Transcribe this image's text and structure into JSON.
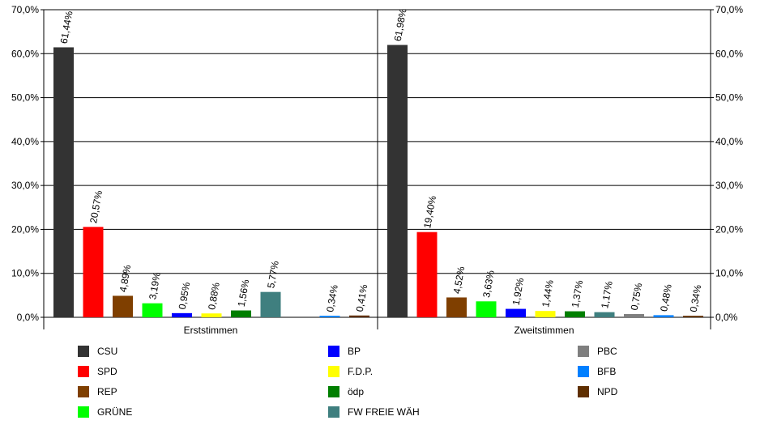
{
  "chart_data": {
    "type": "bar",
    "yaxis": {
      "min": 0,
      "max": 70,
      "step": 10,
      "tick_labels": [
        "0,0%",
        "10,0%",
        "20,0%",
        "30,0%",
        "40,0%",
        "50,0%",
        "60,0%",
        "70,0%"
      ],
      "gridlines": true,
      "secondary_axis_right": true
    },
    "groups": [
      {
        "name": "Erststimmen",
        "bars": [
          {
            "party": "CSU",
            "value": 61.44,
            "label": "61,44%"
          },
          {
            "party": "SPD",
            "value": 20.57,
            "label": "20,57%"
          },
          {
            "party": "REP",
            "value": 4.89,
            "label": "4,89%"
          },
          {
            "party": "GRÜNE",
            "value": 3.19,
            "label": "3,19%"
          },
          {
            "party": "BP",
            "value": 0.95,
            "label": "0,95%"
          },
          {
            "party": "F.D.P.",
            "value": 0.88,
            "label": "0,88%"
          },
          {
            "party": "ödp",
            "value": 1.56,
            "label": "1,56%"
          },
          {
            "party": "FW FREIE WÄH",
            "value": 5.77,
            "label": "5,77%"
          },
          {
            "party": "PBC",
            "value": null,
            "label": ""
          },
          {
            "party": "BFB",
            "value": 0.34,
            "label": "0,34%"
          },
          {
            "party": "NPD",
            "value": 0.41,
            "label": "0,41%"
          }
        ]
      },
      {
        "name": "Zweitstimmen",
        "bars": [
          {
            "party": "CSU",
            "value": 61.98,
            "label": "61,98%"
          },
          {
            "party": "SPD",
            "value": 19.4,
            "label": "19,40%"
          },
          {
            "party": "REP",
            "value": 4.52,
            "label": "4,52%"
          },
          {
            "party": "GRÜNE",
            "value": 3.63,
            "label": "3,63%"
          },
          {
            "party": "BP",
            "value": 1.92,
            "label": "1,92%"
          },
          {
            "party": "F.D.P.",
            "value": 1.44,
            "label": "1,44%"
          },
          {
            "party": "ödp",
            "value": 1.37,
            "label": "1,37%"
          },
          {
            "party": "FW FREIE WÄH",
            "value": 1.17,
            "label": "1,17%"
          },
          {
            "party": "PBC",
            "value": 0.75,
            "label": "0,75%"
          },
          {
            "party": "BFB",
            "value": 0.48,
            "label": "0,48%"
          },
          {
            "party": "NPD",
            "value": 0.34,
            "label": "0,34%"
          }
        ]
      }
    ],
    "legend": {
      "placement": "bottom",
      "columns": [
        [
          {
            "party": "CSU",
            "label": "CSU"
          },
          {
            "party": "SPD",
            "label": "SPD"
          },
          {
            "party": "REP",
            "label": "REP"
          },
          {
            "party": "GRÜNE",
            "label": "GRÜNE"
          }
        ],
        [
          {
            "party": "BP",
            "label": "BP"
          },
          {
            "party": "F.D.P.",
            "label": "F.D.P."
          },
          {
            "party": "ödp",
            "label": "ödp"
          },
          {
            "party": "FW FREIE WÄH",
            "label": "FW FREIE WÄH"
          }
        ],
        [
          {
            "party": "PBC",
            "label": "PBC"
          },
          {
            "party": "BFB",
            "label": "BFB"
          },
          {
            "party": "NPD",
            "label": "NPD"
          }
        ]
      ]
    },
    "colors": {
      "CSU": "#333333",
      "SPD": "#ff0000",
      "REP": "#7f3f00",
      "GRÜNE": "#00ff00",
      "BP": "#0000ff",
      "F.D.P.": "#ffff00",
      "ödp": "#007f00",
      "FW FREIE WÄH": "#3f7f7f",
      "PBC": "#7f7f7f",
      "BFB": "#007fff",
      "NPD": "#5f2f00"
    }
  }
}
